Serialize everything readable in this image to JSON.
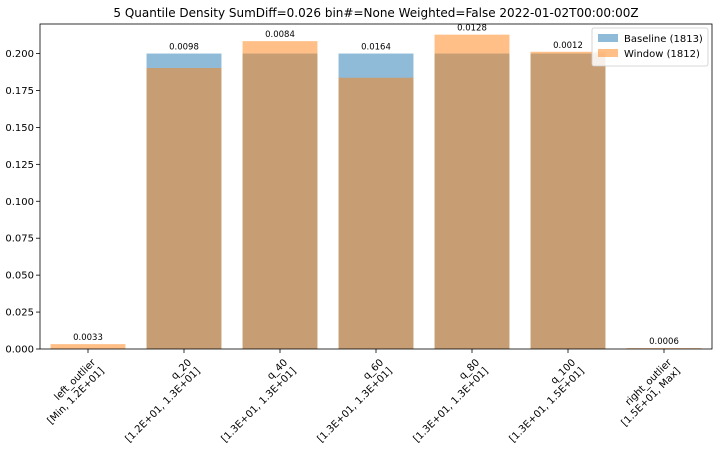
{
  "chart_data": {
    "type": "bar",
    "title": "5 Quantile Density SumDiff=0.026 bin#=None Weighted=False 2022-01-02T00:00:00Z",
    "categories": [
      [
        "left_outlier",
        "[Min, 1.2E+01]"
      ],
      [
        "q_20",
        "[1.2E+01, 1.3E+01]"
      ],
      [
        "q_40",
        "[1.3E+01, 1.3E+01]"
      ],
      [
        "q_60",
        "[1.3E+01, 1.3E+01]"
      ],
      [
        "q_80",
        "[1.3E+01, 1.3E+01]"
      ],
      [
        "q_100",
        "[1.3E+01, 1.5E+01]"
      ],
      [
        "right_outlier",
        "[1.5E+01, Max]"
      ]
    ],
    "series": [
      {
        "name": "Baseline (1813)",
        "color": "#1f77b4",
        "values": [
          0.0,
          0.2,
          0.2,
          0.2,
          0.2,
          0.2,
          0.0
        ]
      },
      {
        "name": "Window (1812)",
        "color": "#ff7f0e",
        "values": [
          0.0033,
          0.1902,
          0.2084,
          0.1836,
          0.2128,
          0.2012,
          0.0006
        ]
      }
    ],
    "bar_labels": [
      "0.0033",
      "0.0098",
      "0.0084",
      "0.0164",
      "0.0128",
      "0.0012",
      "0.0006"
    ],
    "ylim": [
      0,
      0.22
    ],
    "yticks": [
      "0.000",
      "0.025",
      "0.050",
      "0.075",
      "0.100",
      "0.125",
      "0.150",
      "0.175",
      "0.200"
    ],
    "xlabel": "",
    "ylabel": "",
    "grid": false,
    "legend_position": "top-right",
    "opacity": 0.5
  }
}
